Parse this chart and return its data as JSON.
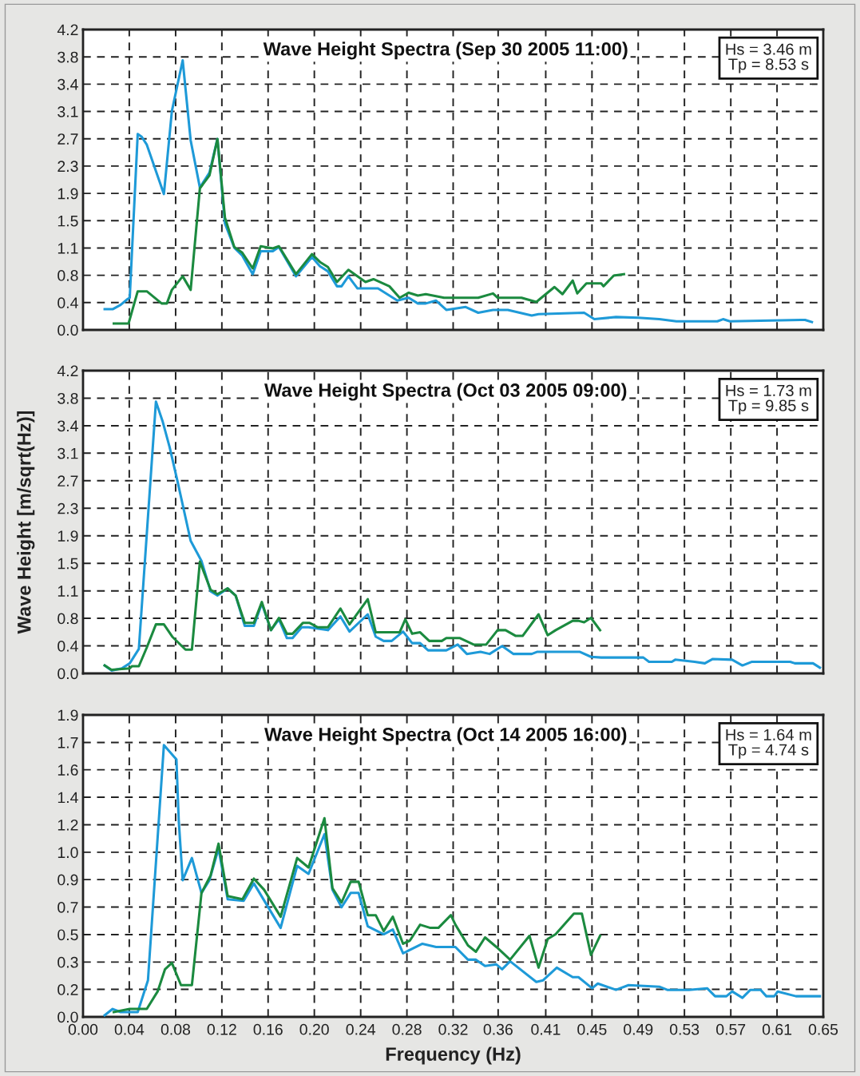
{
  "chart_data": [
    {
      "type": "line",
      "title": "Wave Height Spectra (Sep 30 2005 11:00)",
      "annotations": [
        "Hs = 3.46 m\nTp = 8.53 s"
      ],
      "grid": true,
      "tick_labels": "y",
      "xlim": [
        0,
        0.65
      ],
      "ylim": [
        0,
        4.2
      ],
      "xticks": [
        {
          "value": 0,
          "label": null
        },
        {
          "value": 0.0406,
          "label": null
        },
        {
          "value": 0.0813,
          "label": null
        },
        {
          "value": 0.1219,
          "label": null
        },
        {
          "value": 0.1625,
          "label": null
        },
        {
          "value": 0.2031,
          "label": null
        },
        {
          "value": 0.2438,
          "label": null
        },
        {
          "value": 0.2844,
          "label": null
        },
        {
          "value": 0.325,
          "label": null
        },
        {
          "value": 0.3645,
          "label": null
        },
        {
          "value": 0.4063,
          "label": null
        },
        {
          "value": 0.4469,
          "label": null
        },
        {
          "value": 0.4875,
          "label": null
        },
        {
          "value": 0.5281,
          "label": null
        },
        {
          "value": 0.5688,
          "label": null
        },
        {
          "value": 0.6094,
          "label": null
        },
        {
          "value": 0.65,
          "label": null
        }
      ],
      "yticks": [
        {
          "value": 0,
          "label": "0.0"
        },
        {
          "value": 0.382,
          "label": "0.4"
        },
        {
          "value": 0.764,
          "label": "0.8"
        },
        {
          "value": 1.145,
          "label": "1.1"
        },
        {
          "value": 1.527,
          "label": "1.5"
        },
        {
          "value": 1.909,
          "label": "1.9"
        },
        {
          "value": 2.291,
          "label": "2.3"
        },
        {
          "value": 2.673,
          "label": "2.7"
        },
        {
          "value": 3.055,
          "label": "3.1"
        },
        {
          "value": 3.436,
          "label": "3.4"
        },
        {
          "value": 3.818,
          "label": "3.8"
        },
        {
          "value": 4.2,
          "label": "4.2"
        }
      ],
      "series": [
        {
          "color": "#1e9ad8",
          "x": [
            0.019,
            0.026,
            0.033,
            0.039,
            0.041,
            0.048,
            0.0515,
            0.056,
            0.071,
            0.078,
            0.0875,
            0.0945,
            0.1026,
            0.111,
            0.118,
            0.1246,
            0.1328,
            0.1398,
            0.149,
            0.156,
            0.1666,
            0.172,
            0.187,
            0.201,
            0.208,
            0.215,
            0.223,
            0.227,
            0.233,
            0.241,
            0.259,
            0.276,
            0.286,
            0.294,
            0.301,
            0.31,
            0.319,
            0.336,
            0.347,
            0.36,
            0.373,
            0.394,
            0.4,
            0.44,
            0.449,
            0.468,
            0.4875,
            0.506,
            0.521,
            0.557,
            0.562,
            0.568,
            0.63,
            0.634,
            0.64
          ],
          "values": [
            0.29,
            0.29,
            0.35,
            0.43,
            0.45,
            2.74,
            2.7,
            2.59,
            1.9,
            3.06,
            3.77,
            2.65,
            1.99,
            2.2,
            2.67,
            1.49,
            1.15,
            1.04,
            0.78,
            1.1,
            1.1,
            1.16,
            0.75,
            1.02,
            0.89,
            0.82,
            0.61,
            0.61,
            0.75,
            0.58,
            0.58,
            0.41,
            0.45,
            0.37,
            0.37,
            0.41,
            0.28,
            0.32,
            0.24,
            0.28,
            0.28,
            0.2,
            0.22,
            0.24,
            0.15,
            0.18,
            0.17,
            0.15,
            0.12,
            0.12,
            0.15,
            0.12,
            0.14,
            0.14,
            0.11
          ]
        },
        {
          "color": "#1b8a3f",
          "x": [
            0.027,
            0.04,
            0.048,
            0.056,
            0.069,
            0.0736,
            0.078,
            0.0875,
            0.0945,
            0.1026,
            0.111,
            0.118,
            0.1246,
            0.1328,
            0.1398,
            0.149,
            0.156,
            0.1666,
            0.172,
            0.187,
            0.201,
            0.208,
            0.215,
            0.223,
            0.233,
            0.248,
            0.255,
            0.269,
            0.278,
            0.286,
            0.294,
            0.301,
            0.317,
            0.347,
            0.36,
            0.364,
            0.385,
            0.398,
            0.401,
            0.414,
            0.421,
            0.43,
            0.434,
            0.442,
            0.455,
            0.457,
            0.466,
            0.475
          ],
          "values": [
            0.09,
            0.09,
            0.54,
            0.54,
            0.37,
            0.37,
            0.56,
            0.75,
            0.56,
            1.98,
            2.16,
            2.67,
            1.57,
            1.16,
            1.08,
            0.86,
            1.17,
            1.14,
            1.17,
            0.78,
            1.06,
            0.95,
            0.88,
            0.67,
            0.84,
            0.67,
            0.71,
            0.61,
            0.45,
            0.52,
            0.48,
            0.5,
            0.45,
            0.45,
            0.51,
            0.45,
            0.45,
            0.39,
            0.43,
            0.6,
            0.5,
            0.69,
            0.51,
            0.65,
            0.65,
            0.61,
            0.76,
            0.78
          ]
        }
      ]
    },
    {
      "type": "line",
      "title": "Wave Height Spectra (Oct 03 2005 09:00)",
      "ylabel": "Wave Height [m/sqrt(Hz)]",
      "annotations": [
        "Hs = 1.73 m\nTp = 9.85 s"
      ],
      "grid": true,
      "tick_labels": "y",
      "xlim": [
        0,
        0.65
      ],
      "ylim": [
        0,
        4.2
      ],
      "xticks": [
        {
          "value": 0,
          "label": null
        },
        {
          "value": 0.0406,
          "label": null
        },
        {
          "value": 0.0813,
          "label": null
        },
        {
          "value": 0.1219,
          "label": null
        },
        {
          "value": 0.1625,
          "label": null
        },
        {
          "value": 0.2031,
          "label": null
        },
        {
          "value": 0.2438,
          "label": null
        },
        {
          "value": 0.2844,
          "label": null
        },
        {
          "value": 0.325,
          "label": null
        },
        {
          "value": 0.3645,
          "label": null
        },
        {
          "value": 0.4063,
          "label": null
        },
        {
          "value": 0.4469,
          "label": null
        },
        {
          "value": 0.4875,
          "label": null
        },
        {
          "value": 0.5281,
          "label": null
        },
        {
          "value": 0.5688,
          "label": null
        },
        {
          "value": 0.6094,
          "label": null
        },
        {
          "value": 0.65,
          "label": null
        }
      ],
      "yticks": [
        {
          "value": 0,
          "label": "0.0"
        },
        {
          "value": 0.382,
          "label": "0.4"
        },
        {
          "value": 0.764,
          "label": "0.8"
        },
        {
          "value": 1.145,
          "label": "1.1"
        },
        {
          "value": 1.527,
          "label": "1.5"
        },
        {
          "value": 1.909,
          "label": "1.9"
        },
        {
          "value": 2.291,
          "label": "2.3"
        },
        {
          "value": 2.673,
          "label": "2.7"
        },
        {
          "value": 3.055,
          "label": "3.1"
        },
        {
          "value": 3.436,
          "label": "3.4"
        },
        {
          "value": 3.818,
          "label": "3.8"
        },
        {
          "value": 4.2,
          "label": "4.2"
        }
      ],
      "series": [
        {
          "color": "#1e9ad8",
          "x": [
            0.019,
            0.025,
            0.034,
            0.041,
            0.049,
            0.064,
            0.07,
            0.076,
            0.083,
            0.0945,
            0.104,
            0.112,
            0.118,
            0.127,
            0.134,
            0.142,
            0.15,
            0.157,
            0.165,
            0.172,
            0.179,
            0.184,
            0.192,
            0.198,
            0.215,
            0.226,
            0.234,
            0.25,
            0.257,
            0.264,
            0.271,
            0.281,
            0.289,
            0.296,
            0.303,
            0.319,
            0.329,
            0.337,
            0.349,
            0.357,
            0.368,
            0.378,
            0.394,
            0.399,
            0.436,
            0.446,
            0.455,
            0.492,
            0.497,
            0.517,
            0.52,
            0.537,
            0.546,
            0.553,
            0.57,
            0.579,
            0.587,
            0.621,
            0.625,
            0.641,
            0.647
          ],
          "values": [
            0.11,
            0.04,
            0.07,
            0.14,
            0.34,
            3.77,
            3.49,
            3.14,
            2.66,
            1.84,
            1.56,
            1.14,
            1.08,
            1.18,
            1.08,
            0.66,
            0.66,
            0.97,
            0.6,
            0.75,
            0.49,
            0.49,
            0.64,
            0.64,
            0.6,
            0.79,
            0.58,
            0.82,
            0.51,
            0.45,
            0.45,
            0.58,
            0.42,
            0.42,
            0.32,
            0.32,
            0.4,
            0.27,
            0.3,
            0.27,
            0.38,
            0.27,
            0.27,
            0.3,
            0.3,
            0.23,
            0.22,
            0.22,
            0.16,
            0.16,
            0.19,
            0.16,
            0.14,
            0.2,
            0.19,
            0.11,
            0.16,
            0.16,
            0.14,
            0.14,
            0.08
          ]
        },
        {
          "color": "#1b8a3f",
          "x": [
            0.019,
            0.025,
            0.041,
            0.043,
            0.049,
            0.056,
            0.064,
            0.071,
            0.0783,
            0.09,
            0.0956,
            0.1026,
            0.112,
            0.118,
            0.127,
            0.134,
            0.142,
            0.15,
            0.157,
            0.165,
            0.172,
            0.179,
            0.184,
            0.193,
            0.199,
            0.206,
            0.215,
            0.226,
            0.234,
            0.25,
            0.257,
            0.278,
            0.283,
            0.289,
            0.296,
            0.304,
            0.315,
            0.319,
            0.331,
            0.343,
            0.354,
            0.364,
            0.371,
            0.38,
            0.386,
            0.4,
            0.408,
            0.415,
            0.43,
            0.435,
            0.44,
            0.446,
            0.454
          ],
          "values": [
            0.11,
            0.05,
            0.07,
            0.1,
            0.1,
            0.36,
            0.68,
            0.68,
            0.51,
            0.33,
            0.33,
            1.55,
            1.16,
            1.1,
            1.18,
            1.08,
            0.7,
            0.7,
            0.99,
            0.6,
            0.77,
            0.55,
            0.55,
            0.7,
            0.7,
            0.64,
            0.64,
            0.9,
            0.68,
            1.03,
            0.57,
            0.57,
            0.75,
            0.55,
            0.57,
            0.45,
            0.45,
            0.49,
            0.49,
            0.4,
            0.4,
            0.6,
            0.6,
            0.52,
            0.52,
            0.82,
            0.53,
            0.6,
            0.73,
            0.73,
            0.71,
            0.77,
            0.6
          ]
        }
      ]
    },
    {
      "type": "line",
      "title": "Wave Height Spectra (Oct 14 2005 16:00)",
      "xlabel": "Frequency (Hz)",
      "annotations": [
        "Hs = 1.64 m\nTp = 4.74 s"
      ],
      "grid": true,
      "xlim": [
        0,
        0.65
      ],
      "ylim": [
        0,
        1.9
      ],
      "xticks": [
        {
          "value": 0,
          "label": "0.00"
        },
        {
          "value": 0.0406,
          "label": "0.04"
        },
        {
          "value": 0.0813,
          "label": "0.08"
        },
        {
          "value": 0.1219,
          "label": "0.12"
        },
        {
          "value": 0.1625,
          "label": "0.16"
        },
        {
          "value": 0.2031,
          "label": "0.20"
        },
        {
          "value": 0.2438,
          "label": "0.24"
        },
        {
          "value": 0.2844,
          "label": "0.28"
        },
        {
          "value": 0.325,
          "label": "0.32"
        },
        {
          "value": 0.3645,
          "label": "0.36"
        },
        {
          "value": 0.4063,
          "label": "0.41"
        },
        {
          "value": 0.4469,
          "label": "0.45"
        },
        {
          "value": 0.4875,
          "label": "0.49"
        },
        {
          "value": 0.5281,
          "label": "0.53"
        },
        {
          "value": 0.5688,
          "label": "0.57"
        },
        {
          "value": 0.6094,
          "label": "0.61"
        },
        {
          "value": 0.65,
          "label": "0.65"
        }
      ],
      "yticks": [
        {
          "value": 0,
          "label": "0.0"
        },
        {
          "value": 0.173,
          "label": "0.2"
        },
        {
          "value": 0.345,
          "label": "0.3"
        },
        {
          "value": 0.518,
          "label": "0.5"
        },
        {
          "value": 0.691,
          "label": "0.7"
        },
        {
          "value": 0.864,
          "label": "0.9"
        },
        {
          "value": 1.036,
          "label": "1.0"
        },
        {
          "value": 1.209,
          "label": "1.2"
        },
        {
          "value": 1.382,
          "label": "1.4"
        },
        {
          "value": 1.555,
          "label": "1.6"
        },
        {
          "value": 1.727,
          "label": "1.7"
        },
        {
          "value": 1.9,
          "label": "1.9"
        }
      ],
      "series": [
        {
          "color": "#1e9ad8",
          "x": [
            0.019,
            0.026,
            0.033,
            0.048,
            0.057,
            0.071,
            0.082,
            0.084,
            0.0875,
            0.0956,
            0.104,
            0.111,
            0.119,
            0.127,
            0.141,
            0.15,
            0.1735,
            0.188,
            0.198,
            0.212,
            0.219,
            0.227,
            0.235,
            0.242,
            0.25,
            0.264,
            0.272,
            0.281,
            0.298,
            0.31,
            0.317,
            0.327,
            0.338,
            0.345,
            0.353,
            0.363,
            0.368,
            0.375,
            0.398,
            0.404,
            0.416,
            0.43,
            0.435,
            0.447,
            0.452,
            0.468,
            0.479,
            0.506,
            0.513,
            0.532,
            0.548,
            0.555,
            0.565,
            0.57,
            0.579,
            0.586,
            0.595,
            0.6,
            0.607,
            0.61,
            0.626,
            0.647
          ],
          "values": [
            0.01,
            0.05,
            0.03,
            0.03,
            0.23,
            1.71,
            1.62,
            1.24,
            0.86,
            1.0,
            0.78,
            0.86,
            1.06,
            0.74,
            0.73,
            0.84,
            0.56,
            0.95,
            0.9,
            1.15,
            0.8,
            0.69,
            0.78,
            0.78,
            0.57,
            0.52,
            0.55,
            0.4,
            0.46,
            0.44,
            0.44,
            0.44,
            0.36,
            0.36,
            0.32,
            0.33,
            0.3,
            0.35,
            0.22,
            0.23,
            0.31,
            0.25,
            0.25,
            0.18,
            0.21,
            0.17,
            0.2,
            0.19,
            0.17,
            0.17,
            0.18,
            0.13,
            0.13,
            0.16,
            0.12,
            0.17,
            0.17,
            0.13,
            0.13,
            0.16,
            0.13,
            0.13
          ]
        },
        {
          "color": "#1b8a3f",
          "x": [
            0.027,
            0.041,
            0.056,
            0.0655,
            0.072,
            0.078,
            0.086,
            0.0956,
            0.104,
            0.112,
            0.119,
            0.127,
            0.14,
            0.15,
            0.159,
            0.1735,
            0.188,
            0.198,
            0.212,
            0.219,
            0.227,
            0.235,
            0.242,
            0.25,
            0.257,
            0.264,
            0.272,
            0.281,
            0.287,
            0.296,
            0.305,
            0.312,
            0.323,
            0.327,
            0.338,
            0.345,
            0.353,
            0.363,
            0.375,
            0.392,
            0.4,
            0.408,
            0.415,
            0.431,
            0.438,
            0.446,
            0.454
          ],
          "values": [
            0.03,
            0.05,
            0.05,
            0.16,
            0.3,
            0.34,
            0.2,
            0.2,
            0.78,
            0.89,
            1.09,
            0.76,
            0.74,
            0.87,
            0.8,
            0.63,
            1.0,
            0.94,
            1.25,
            0.81,
            0.72,
            0.85,
            0.85,
            0.64,
            0.64,
            0.54,
            0.63,
            0.46,
            0.48,
            0.58,
            0.56,
            0.56,
            0.64,
            0.58,
            0.45,
            0.41,
            0.5,
            0.44,
            0.36,
            0.51,
            0.31,
            0.49,
            0.52,
            0.65,
            0.65,
            0.39,
            0.51
          ]
        }
      ]
    }
  ]
}
